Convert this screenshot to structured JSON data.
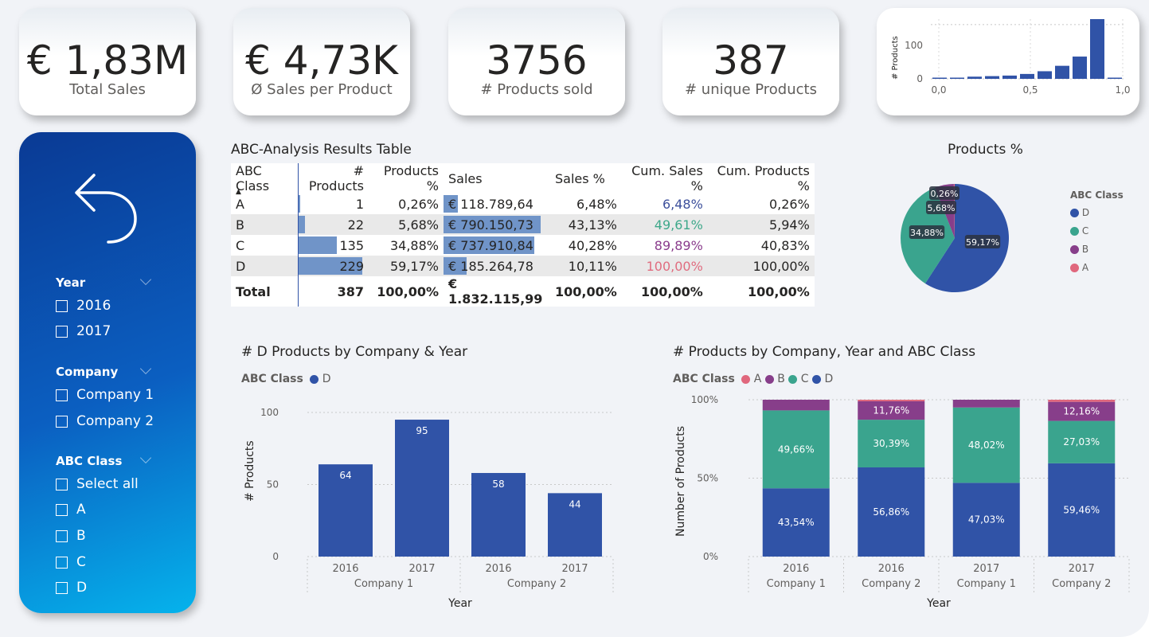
{
  "kpis": [
    {
      "value": "€ 1,83M",
      "label": "Total Sales"
    },
    {
      "value": "€ 4,73K",
      "label": "Ø Sales per Product"
    },
    {
      "value": "3756",
      "label": "# Products sold"
    },
    {
      "value": "387",
      "label": "# unique Products"
    }
  ],
  "mini_hist": {
    "ylabel": "# Products",
    "yticks": [
      "100",
      "0"
    ],
    "xticks": [
      "0,0",
      "0,5",
      "1,0"
    ]
  },
  "slicers": {
    "year": {
      "title": "Year",
      "items": [
        "2016",
        "2017"
      ]
    },
    "company": {
      "title": "Company",
      "items": [
        "Company 1",
        "Company 2"
      ]
    },
    "abc": {
      "title": "ABC Class",
      "items": [
        "Select all",
        "A",
        "B",
        "C",
        "D"
      ]
    }
  },
  "table": {
    "title": "ABC-Analysis Results Table",
    "headers": [
      "ABC Class",
      "# Products",
      "Products %",
      "Sales",
      "Sales %",
      "Cum. Sales %",
      "Cum. Products %"
    ],
    "rows": [
      {
        "cls": "A",
        "products": "1",
        "products_pct": "0,26%",
        "sales": "€ 118.789,64",
        "sales_pct": "6,48%",
        "cum_sales": "6,48%",
        "cum_products": "0,26%",
        "cum_color": "#3c4f9b"
      },
      {
        "cls": "B",
        "products": "22",
        "products_pct": "5,68%",
        "sales": "€ 790.150,73",
        "sales_pct": "43,13%",
        "cum_sales": "49,61%",
        "cum_products": "5,94%",
        "cum_color": "#3ea88a"
      },
      {
        "cls": "C",
        "products": "135",
        "products_pct": "34,88%",
        "sales": "€ 737.910,84",
        "sales_pct": "40,28%",
        "cum_sales": "89,89%",
        "cum_products": "40,83%",
        "cum_color": "#8a3c8c"
      },
      {
        "cls": "D",
        "products": "229",
        "products_pct": "59,17%",
        "sales": "€ 185.264,78",
        "sales_pct": "10,11%",
        "cum_sales": "100,00%",
        "cum_products": "100,00%",
        "cum_color": "#e06c7f"
      }
    ],
    "total": {
      "cls": "Total",
      "products": "387",
      "products_pct": "100,00%",
      "sales": "€ 1.832.115,99",
      "sales_pct": "100,00%",
      "cum_sales": "100,00%",
      "cum_products": "100,00%"
    }
  },
  "pie": {
    "title": "Products %",
    "legend_title": "ABC Class",
    "legend": [
      {
        "name": "D",
        "color": "#3053a7"
      },
      {
        "name": "C",
        "color": "#3aa48e"
      },
      {
        "name": "B",
        "color": "#873e8a"
      },
      {
        "name": "A",
        "color": "#e0677d"
      }
    ]
  },
  "chart_data": [
    {
      "type": "bar",
      "title": "",
      "xlabel": "",
      "ylabel": "# Products",
      "x": [
        0.0,
        0.1,
        0.2,
        0.3,
        0.4,
        0.5,
        0.6,
        0.7,
        0.8,
        0.9,
        1.0
      ],
      "values": [
        1,
        2,
        4,
        5,
        6,
        9,
        14,
        24,
        41,
        110,
        2
      ],
      "ylim": [
        0,
        110
      ],
      "xlim": [
        0,
        1
      ]
    },
    {
      "type": "pie",
      "title": "Products %",
      "categories": [
        "D",
        "C",
        "B",
        "A"
      ],
      "values": [
        59.17,
        34.88,
        5.68,
        0.26
      ],
      "labels": [
        "59,17%",
        "34,88%",
        "5,68%",
        "0,26%"
      ],
      "legend": "right"
    },
    {
      "type": "bar",
      "title": "# D Products by Company & Year",
      "legend_title": "ABC Class",
      "series": [
        {
          "name": "D",
          "values": [
            64,
            95,
            58,
            44
          ]
        }
      ],
      "categories": [
        "2016",
        "2017",
        "2016",
        "2017"
      ],
      "groups": [
        "Company 1",
        "Company 2"
      ],
      "xlabel": "Year",
      "ylabel": "# Products",
      "yticks": [
        "100",
        "50",
        "0"
      ],
      "ylim": [
        0,
        100
      ],
      "grid": true
    },
    {
      "type": "bar",
      "stacked": "percent",
      "title": "# Products by Company, Year and ABC Class",
      "legend_title": "ABC Class",
      "categories": [
        "2016",
        "2016",
        "2017",
        "2017"
      ],
      "companies": [
        "Company 1",
        "Company 2",
        "Company 1",
        "Company 2"
      ],
      "series": [
        {
          "name": "D",
          "values": [
            43.54,
            56.86,
            47.03,
            59.46
          ],
          "labels": [
            "43,54%",
            "56,86%",
            "47,03%",
            "59,46%"
          ]
        },
        {
          "name": "C",
          "values": [
            49.66,
            30.39,
            48.02,
            27.03
          ],
          "labels": [
            "49,66%",
            "30,39%",
            "48,02%",
            "27,03%"
          ]
        },
        {
          "name": "B",
          "values": [
            6.8,
            11.76,
            4.95,
            12.16
          ],
          "labels": [
            "",
            "11,76%",
            "",
            "12,16%"
          ]
        },
        {
          "name": "A",
          "values": [
            0.0,
            0.99,
            0.0,
            1.35
          ],
          "labels": [
            "",
            "",
            "",
            ""
          ]
        }
      ],
      "xlabel": "Year",
      "ylabel": "Number of Products",
      "yticks": [
        "100%",
        "50%",
        "0%"
      ],
      "ylim": [
        0,
        100
      ],
      "legend": "top-left",
      "grid": true
    }
  ]
}
